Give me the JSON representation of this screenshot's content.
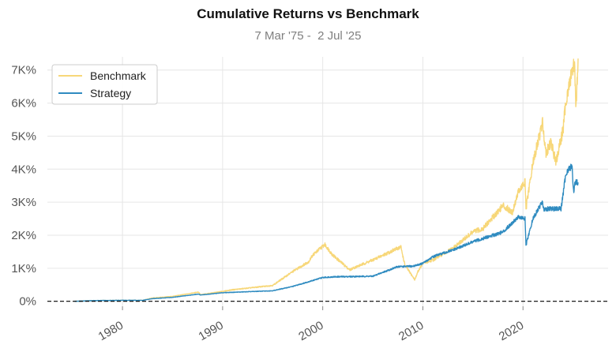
{
  "colors": {
    "benchmark": "#f7d779",
    "strategy": "#2f8bc0",
    "grid": "#e6e6e6",
    "zero_line": "#000000"
  },
  "chart_data": {
    "type": "line",
    "title": "Cumulative Returns vs Benchmark",
    "subtitle": "7 Mar '75 -  2 Jul '25",
    "xlabel": "",
    "ylabel": "",
    "xlim": [
      1972.5,
      2028.5
    ],
    "ylim": [
      -150,
      7400
    ],
    "x_ticks": [
      1980,
      1990,
      2000,
      2010,
      2020
    ],
    "x_tick_labels": [
      "1980",
      "1990",
      "2000",
      "2010",
      "2020"
    ],
    "y_ticks": [
      0,
      1000,
      2000,
      3000,
      4000,
      5000,
      6000,
      7000
    ],
    "y_tick_labels": [
      "0%",
      "1K%",
      "2K%",
      "3K%",
      "4K%",
      "5K%",
      "6K%",
      "7K%"
    ],
    "grid": true,
    "legend": {
      "position": "top-left",
      "entries": [
        "Benchmark",
        "Strategy"
      ]
    },
    "zero_line": {
      "y": 0,
      "style": "dashed"
    },
    "series": [
      {
        "name": "Benchmark",
        "color": "#f7d779",
        "x": [
          1975.2,
          1977,
          1980,
          1982,
          1983,
          1985,
          1987.6,
          1987.8,
          1990,
          1991,
          1995,
          1997,
          1998.6,
          1999,
          2000.2,
          2001,
          2002.7,
          2003,
          2005,
          2007.8,
          2008.2,
          2009.2,
          2009.5,
          2010,
          2011,
          2013,
          2015,
          2016,
          2018,
          2018.95,
          2019.5,
          2020.2,
          2020.3,
          2021,
          2021.95,
          2022.3,
          2022.8,
          2023.3,
          2024,
          2024.3,
          2024.6,
          2024.9,
          2025.15,
          2025.3,
          2025.5
        ],
        "y": [
          0,
          20,
          30,
          30,
          100,
          150,
          280,
          200,
          300,
          350,
          480,
          900,
          1200,
          1400,
          1720,
          1400,
          950,
          1000,
          1250,
          1650,
          1100,
          650,
          900,
          1150,
          1250,
          1600,
          2100,
          2200,
          2900,
          2700,
          3300,
          3600,
          2800,
          4200,
          5400,
          4500,
          4800,
          4200,
          5200,
          6100,
          6500,
          7000,
          7200,
          5800,
          7350
        ]
      },
      {
        "name": "Strategy",
        "color": "#2f8bc0",
        "x": [
          1975.2,
          1977,
          1980,
          1982,
          1983,
          1985,
          1987.6,
          1987.8,
          1990,
          1995,
          1997,
          2000,
          2001,
          2005,
          2007.5,
          2009,
          2010,
          2011,
          2013,
          2015,
          2016,
          2018,
          2019.5,
          2020.2,
          2020.3,
          2021,
          2021.9,
          2022.1,
          2023.8,
          2024.3,
          2024.9,
          2025.05,
          2025.2,
          2025.5
        ],
        "y": [
          0,
          20,
          30,
          30,
          80,
          120,
          220,
          190,
          260,
          320,
          450,
          720,
          740,
          760,
          1050,
          1060,
          1150,
          1350,
          1550,
          1800,
          1900,
          2100,
          2550,
          2500,
          1700,
          2500,
          3000,
          2800,
          2800,
          3900,
          4100,
          3300,
          3600,
          3600
        ]
      }
    ]
  }
}
